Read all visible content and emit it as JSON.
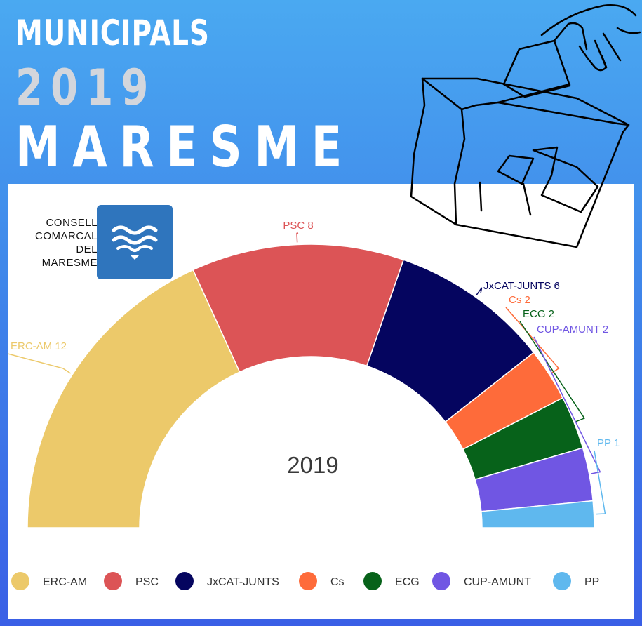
{
  "header": {
    "line1": "MUNICIPALS",
    "line2": "2019",
    "line3": "MARESME"
  },
  "org": {
    "name_lines": [
      "CONSELL",
      "COMARCAL",
      "DEL",
      "MARESME"
    ]
  },
  "icons": {
    "logo": "waves-logo-icon",
    "ballot": "ballot-box-hand-icon"
  },
  "colors": {
    "background_top": "#4aa9f1",
    "background_bottom": "#3a5fe6",
    "logo_blue": "#2f75bd"
  },
  "chart_data": {
    "type": "pie",
    "subtype": "half-donut",
    "center_label": "2019",
    "categories": [
      "ERC-AM",
      "PSC",
      "JxCAT-JUNTS",
      "Cs",
      "ECG",
      "CUP-AMUNT",
      "PP"
    ],
    "values": [
      12,
      8,
      6,
      2,
      2,
      2,
      1
    ],
    "colors": [
      "#ecc96a",
      "#dc5456",
      "#05055f",
      "#fe6b3a",
      "#07621a",
      "#7056e3",
      "#5fb8ee"
    ],
    "data_labels": [
      "ERC-AM 12",
      "PSC 8",
      "JxCAT-JUNTS 6",
      "Cs 2",
      "ECG 2",
      "CUP-AMUNT 2",
      "PP 1"
    ],
    "legend": {
      "placement": "bottom",
      "entries": [
        "ERC-AM",
        "PSC",
        "JxCAT-JUNTS",
        "Cs",
        "ECG",
        "CUP-AMUNT",
        "PP"
      ]
    }
  }
}
